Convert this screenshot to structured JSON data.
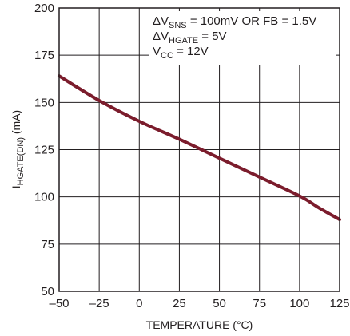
{
  "chart_data": {
    "type": "line",
    "xlabel": "TEMPERATURE (°C)",
    "ylabel": {
      "main": "I",
      "sub": "HGATE(DN)",
      "unit": " (mA)"
    },
    "xlim": [
      -50,
      125
    ],
    "ylim": [
      50,
      200
    ],
    "x_ticks": [
      "–50",
      "–25",
      "0",
      "25",
      "50",
      "75",
      "100",
      "125"
    ],
    "y_ticks": [
      "50",
      "75",
      "100",
      "125",
      "150",
      "175",
      "200"
    ],
    "grid": true,
    "line_color": "#7b1c2c",
    "annotations": [
      {
        "pre": "ΔV",
        "sub": "SNS",
        "post": " = 100mV OR FB = 1.5V"
      },
      {
        "pre": "ΔV",
        "sub": "HGATE",
        "post": " = 5V"
      },
      {
        "pre": "V",
        "sub": "CC",
        "post": " = 12V"
      }
    ],
    "series": [
      {
        "x": [
          -50,
          -25,
          0,
          25,
          50,
          75,
          100,
          112.5,
          125
        ],
        "y": [
          164,
          151,
          140,
          130.5,
          120.5,
          110.5,
          100.5,
          94,
          88
        ]
      }
    ]
  }
}
